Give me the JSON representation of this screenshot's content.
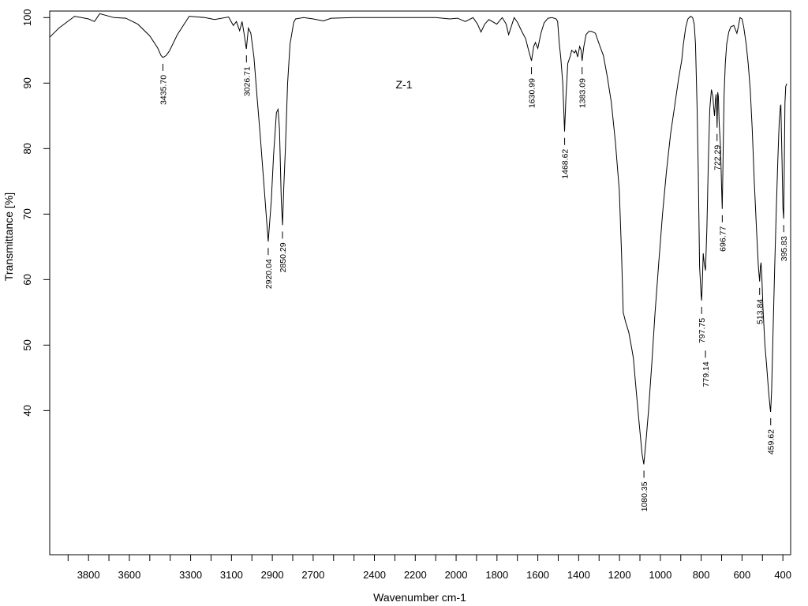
{
  "chart_data": {
    "type": "line",
    "title": "",
    "annotation": "Z-1",
    "xlabel": "Wavenumber cm-1",
    "ylabel": "Transmittance [%]",
    "xlim": [
      3990,
      362
    ],
    "ylim": [
      18,
      101
    ],
    "x_reversed": true,
    "grid": false,
    "x_ticks": [
      3800,
      3600,
      3300,
      3100,
      2900,
      2700,
      2400,
      2200,
      2000,
      1800,
      1600,
      1400,
      1200,
      1000,
      800,
      600,
      400
    ],
    "x_minor_step": 100,
    "y_ticks": [
      100,
      90,
      80,
      70,
      60,
      50,
      40
    ],
    "series": [
      {
        "name": "Z-1",
        "color": "#000000",
        "points": [
          [
            3990,
            97.0
          ],
          [
            3945,
            98.4
          ],
          [
            3868,
            100.2
          ],
          [
            3800,
            99.8
          ],
          [
            3771,
            99.4
          ],
          [
            3745,
            100.6
          ],
          [
            3675,
            100.0
          ],
          [
            3617,
            99.9
          ],
          [
            3559,
            99.0
          ],
          [
            3500,
            97.2
          ],
          [
            3462,
            95.4
          ],
          [
            3445,
            94.2
          ],
          [
            3436,
            93.9
          ],
          [
            3420,
            94.2
          ],
          [
            3404,
            94.9
          ],
          [
            3365,
            97.4
          ],
          [
            3307,
            100.2
          ],
          [
            3230,
            100.0
          ],
          [
            3183,
            99.7
          ],
          [
            3114,
            100.1
          ],
          [
            3091,
            98.8
          ],
          [
            3076,
            99.4
          ],
          [
            3060,
            98.0
          ],
          [
            3048,
            99.4
          ],
          [
            3038,
            97.5
          ],
          [
            3027,
            95.2
          ],
          [
            3017,
            98.4
          ],
          [
            3005,
            97.6
          ],
          [
            2990,
            94.0
          ],
          [
            2975,
            88.0
          ],
          [
            2959,
            82.0
          ],
          [
            2940,
            74.0
          ],
          [
            2920,
            65.8
          ],
          [
            2905,
            72.0
          ],
          [
            2894,
            79.0
          ],
          [
            2880,
            85.5
          ],
          [
            2872,
            86.0
          ],
          [
            2865,
            83.0
          ],
          [
            2856,
            72.0
          ],
          [
            2850,
            68.3
          ],
          [
            2844,
            74.0
          ],
          [
            2836,
            80.0
          ],
          [
            2825,
            90.0
          ],
          [
            2813,
            96.0
          ],
          [
            2795,
            99.3
          ],
          [
            2786,
            99.8
          ],
          [
            2747,
            100.0
          ],
          [
            2700,
            99.8
          ],
          [
            2650,
            99.5
          ],
          [
            2612,
            99.9
          ],
          [
            2500,
            100.0
          ],
          [
            2300,
            100.0
          ],
          [
            2100,
            100.0
          ],
          [
            2032,
            99.8
          ],
          [
            1993,
            99.9
          ],
          [
            1955,
            99.4
          ],
          [
            1917,
            100.0
          ],
          [
            1895,
            99.0
          ],
          [
            1878,
            97.8
          ],
          [
            1860,
            99.0
          ],
          [
            1840,
            99.7
          ],
          [
            1801,
            99.0
          ],
          [
            1774,
            100.0
          ],
          [
            1755,
            99.0
          ],
          [
            1743,
            97.4
          ],
          [
            1716,
            100.0
          ],
          [
            1700,
            99.3
          ],
          [
            1677,
            97.8
          ],
          [
            1660,
            96.8
          ],
          [
            1645,
            95.0
          ],
          [
            1631,
            93.4
          ],
          [
            1620,
            95.6
          ],
          [
            1612,
            96.2
          ],
          [
            1600,
            95.3
          ],
          [
            1585,
            97.6
          ],
          [
            1569,
            99.2
          ],
          [
            1550,
            99.9
          ],
          [
            1530,
            100.0
          ],
          [
            1510,
            99.8
          ],
          [
            1503,
            99.4
          ],
          [
            1495,
            96.0
          ],
          [
            1488,
            94.0
          ],
          [
            1478,
            90.0
          ],
          [
            1469,
            82.6
          ],
          [
            1462,
            88.0
          ],
          [
            1453,
            93.0
          ],
          [
            1440,
            94.2
          ],
          [
            1434,
            95.0
          ],
          [
            1420,
            94.6
          ],
          [
            1414,
            95.0
          ],
          [
            1405,
            94.0
          ],
          [
            1395,
            95.6
          ],
          [
            1388,
            95.0
          ],
          [
            1383,
            93.4
          ],
          [
            1375,
            95.5
          ],
          [
            1364,
            97.4
          ],
          [
            1350,
            97.9
          ],
          [
            1337,
            97.9
          ],
          [
            1318,
            97.6
          ],
          [
            1300,
            96.0
          ],
          [
            1279,
            94.2
          ],
          [
            1260,
            91.0
          ],
          [
            1240,
            87.0
          ],
          [
            1220,
            81.0
          ],
          [
            1201,
            73.7
          ],
          [
            1190,
            64.0
          ],
          [
            1182,
            55.0
          ],
          [
            1170,
            53.5
          ],
          [
            1155,
            52.0
          ],
          [
            1140,
            49.5
          ],
          [
            1132,
            48.0
          ],
          [
            1118,
            43.0
          ],
          [
            1105,
            38.5
          ],
          [
            1090,
            33.5
          ],
          [
            1081,
            31.8
          ],
          [
            1070,
            35.5
          ],
          [
            1058,
            40.0
          ],
          [
            1040,
            48.0
          ],
          [
            1027,
            54.5
          ],
          [
            1008,
            62.5
          ],
          [
            989,
            70.1
          ],
          [
            970,
            76.5
          ],
          [
            950,
            82.2
          ],
          [
            930,
            86.5
          ],
          [
            911,
            90.6
          ],
          [
            895,
            93.5
          ],
          [
            888,
            95.8
          ],
          [
            876,
            98.5
          ],
          [
            865,
            99.8
          ],
          [
            852,
            100.2
          ],
          [
            842,
            100.0
          ],
          [
            834,
            99.0
          ],
          [
            828,
            96.0
          ],
          [
            820,
            86.0
          ],
          [
            814,
            76.0
          ],
          [
            808,
            62.0
          ],
          [
            800,
            57.5
          ],
          [
            798,
            56.8
          ],
          [
            794,
            60.0
          ],
          [
            790,
            64.0
          ],
          [
            785,
            62.5
          ],
          [
            779,
            61.4
          ],
          [
            772,
            68.0
          ],
          [
            765,
            78.0
          ],
          [
            758,
            86.0
          ],
          [
            750,
            89.0
          ],
          [
            743,
            88.0
          ],
          [
            738,
            86.0
          ],
          [
            735,
            85.0
          ],
          [
            730,
            87.5
          ],
          [
            727,
            88.3
          ],
          [
            724,
            86.0
          ],
          [
            722,
            83.2
          ],
          [
            719,
            88.6
          ],
          [
            716,
            88.0
          ],
          [
            712,
            84.0
          ],
          [
            705,
            80.0
          ],
          [
            700,
            74.0
          ],
          [
            697,
            70.8
          ],
          [
            693,
            78.0
          ],
          [
            688,
            88.0
          ],
          [
            682,
            93.0
          ],
          [
            675,
            96.0
          ],
          [
            665,
            97.8
          ],
          [
            655,
            98.6
          ],
          [
            640,
            98.8
          ],
          [
            630,
            98.0
          ],
          [
            625,
            97.6
          ],
          [
            618,
            98.6
          ],
          [
            610,
            100.0
          ],
          [
            600,
            99.8
          ],
          [
            592,
            98.6
          ],
          [
            580,
            96.0
          ],
          [
            570,
            93.0
          ],
          [
            560,
            89.0
          ],
          [
            550,
            83.0
          ],
          [
            540,
            75.0
          ],
          [
            528,
            67.0
          ],
          [
            520,
            62.0
          ],
          [
            514,
            59.7
          ],
          [
            510,
            62.0
          ],
          [
            507,
            62.6
          ],
          [
            503,
            60.5
          ],
          [
            498,
            56.0
          ],
          [
            488,
            50.0
          ],
          [
            480,
            47.0
          ],
          [
            470,
            43.0
          ],
          [
            463,
            40.5
          ],
          [
            460,
            39.8
          ],
          [
            455,
            43.0
          ],
          [
            448,
            52.0
          ],
          [
            440,
            62.0
          ],
          [
            432,
            71.0
          ],
          [
            425,
            78.0
          ],
          [
            418,
            84.0
          ],
          [
            412,
            86.5
          ],
          [
            410,
            86.7
          ],
          [
            407,
            82.0
          ],
          [
            404,
            78.0
          ],
          [
            400,
            71.0
          ],
          [
            396,
            69.3
          ],
          [
            393,
            78.0
          ],
          [
            390,
            87.0
          ],
          [
            386,
            89.5
          ],
          [
            381,
            89.9
          ]
        ]
      }
    ],
    "peak_labels": [
      {
        "wn": 3435.7,
        "t": 93.9,
        "text": "3435.70"
      },
      {
        "wn": 3026.71,
        "t": 95.2,
        "text": "3026.71"
      },
      {
        "wn": 2920.04,
        "t": 65.8,
        "text": "2920.04"
      },
      {
        "wn": 2850.29,
        "t": 68.3,
        "text": "2850.29"
      },
      {
        "wn": 1630.99,
        "t": 93.4,
        "text": "1630.99"
      },
      {
        "wn": 1468.62,
        "t": 82.6,
        "text": "1468.62"
      },
      {
        "wn": 1383.09,
        "t": 93.4,
        "text": "1383.09"
      },
      {
        "wn": 1080.35,
        "t": 31.8,
        "text": "1080.35"
      },
      {
        "wn": 797.75,
        "t": 56.8,
        "text": "797.75"
      },
      {
        "wn": 779.14,
        "t": 61.4,
        "text": "779.14"
      },
      {
        "wn": 722.29,
        "t": 83.2,
        "text": "722.29"
      },
      {
        "wn": 696.77,
        "t": 70.8,
        "text": "696.77"
      },
      {
        "wn": 513.84,
        "t": 59.7,
        "text": "513.84"
      },
      {
        "wn": 459.62,
        "t": 39.8,
        "text": "459.62"
      },
      {
        "wn": 395.83,
        "t": 69.3,
        "text": "395.83"
      }
    ]
  }
}
